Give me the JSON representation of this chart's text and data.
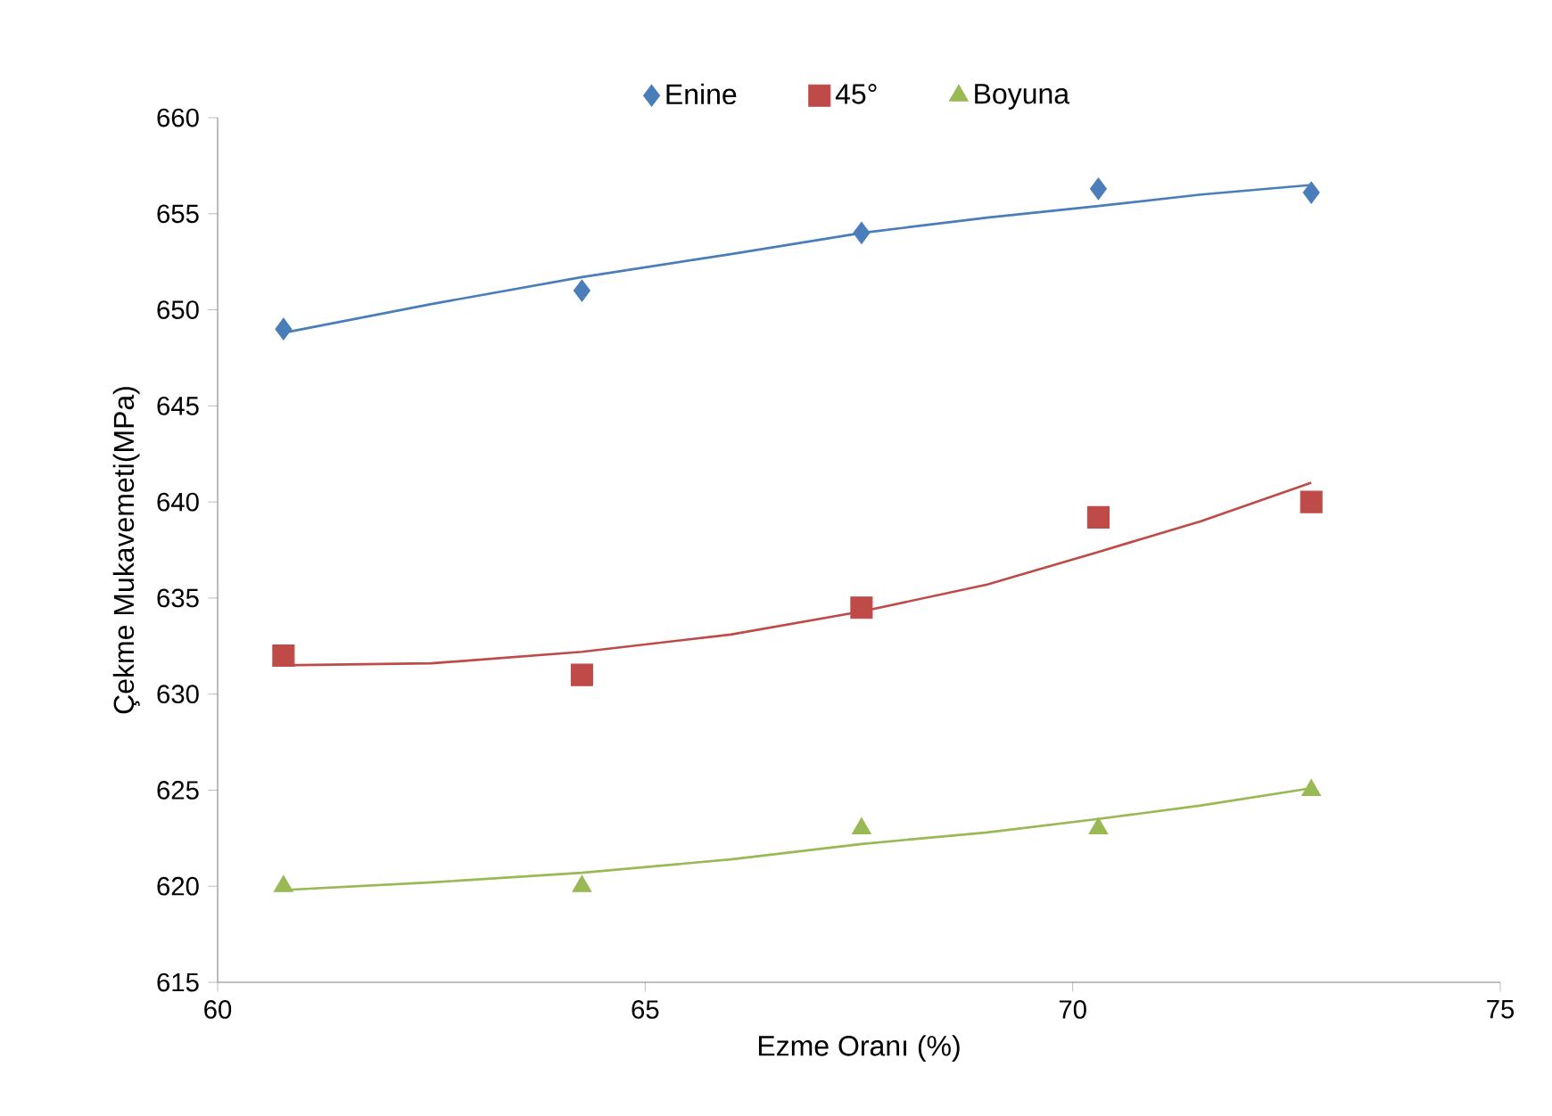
{
  "chart_data": {
    "type": "scatter",
    "xlabel": "Ezme Oranı (%)",
    "ylabel": "Çekme Mukavemeti(MPa)",
    "xlim": [
      60,
      75
    ],
    "xticks": [
      60,
      65,
      70,
      75
    ],
    "ylim": [
      615,
      660
    ],
    "yticks": [
      615,
      620,
      625,
      630,
      635,
      640,
      645,
      650,
      655,
      660
    ],
    "grid": false,
    "legend": "top",
    "series": [
      {
        "name": "Enine",
        "color": "#4a7ebb",
        "marker": "diamond",
        "x": [
          60.77,
          64.26,
          67.53,
          70.3,
          72.79
        ],
        "values": [
          649,
          651,
          654,
          656.3,
          656.1
        ]
      },
      {
        "name": "45°",
        "color": "#be4b48",
        "marker": "square",
        "x": [
          60.77,
          64.26,
          67.53,
          70.3,
          72.79
        ],
        "values": [
          632,
          631,
          634.5,
          639.2,
          640
        ]
      },
      {
        "name": "Boyuna",
        "color": "#98b954",
        "marker": "triangle",
        "x": [
          60.77,
          64.26,
          67.53,
          70.3,
          72.79
        ],
        "values": [
          620,
          620,
          623,
          623,
          625
        ]
      },
      {
        "type": "line",
        "color": "#4a7ebb",
        "marker": "none",
        "x": [
          60.77,
          62.5,
          64.26,
          66,
          67.53,
          69,
          70.3,
          71.5,
          72.79
        ],
        "values": [
          648.8,
          650.3,
          651.7,
          652.9,
          654,
          654.8,
          655.4,
          656,
          656.5
        ]
      },
      {
        "type": "line",
        "color": "#be4b48",
        "marker": "none",
        "x": [
          60.77,
          62.5,
          64.26,
          66,
          67.53,
          69,
          70.3,
          71.5,
          72.79
        ],
        "values": [
          631.5,
          631.6,
          632.2,
          633.1,
          634.3,
          635.7,
          637.4,
          639,
          641
        ]
      },
      {
        "type": "line",
        "color": "#98b954",
        "marker": "none",
        "x": [
          60.77,
          62.5,
          64.26,
          66,
          67.53,
          69,
          70.3,
          71.5,
          72.79
        ],
        "values": [
          619.8,
          620.2,
          620.7,
          621.4,
          622.2,
          622.8,
          623.5,
          624.2,
          625.1
        ]
      }
    ]
  }
}
